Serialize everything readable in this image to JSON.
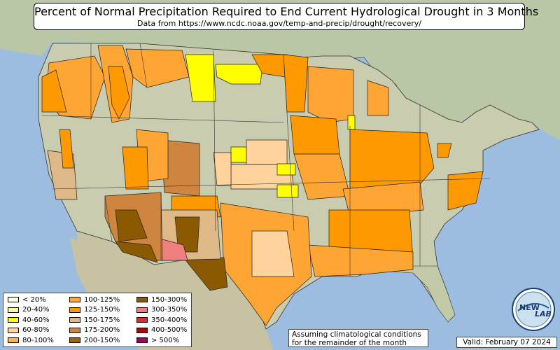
{
  "title": {
    "main": "Percent of Normal Precipitation Required to End Current Hydrological Drought in 3 Months",
    "source": "Data from https://www.ncdc.noaa.gov/temp-and-precip/drought/recovery/"
  },
  "legend": {
    "items": [
      {
        "label": "< 20%",
        "color": "#ffffe0"
      },
      {
        "label": "20-40%",
        "color": "#ffff99"
      },
      {
        "label": "40-60%",
        "color": "#ffff00"
      },
      {
        "label": "60-80%",
        "color": "#ffd39b"
      },
      {
        "label": "80-100%",
        "color": "#ffb347"
      },
      {
        "label": "100-125%",
        "color": "#ffa533"
      },
      {
        "label": "125-150%",
        "color": "#ff9900"
      },
      {
        "label": "150-175%",
        "color": "#deb887"
      },
      {
        "label": "175-200%",
        "color": "#cd853f"
      },
      {
        "label": "200-150%",
        "color": "#a0610f"
      },
      {
        "label": "150-300%",
        "color": "#8b5a00"
      },
      {
        "label": "300-350%",
        "color": "#f08080"
      },
      {
        "label": "350-400%",
        "color": "#d03030"
      },
      {
        "label": "400-500%",
        "color": "#b00000"
      },
      {
        "label": "> 500%",
        "color": "#a0005a"
      }
    ]
  },
  "note": {
    "line1": "Assuming climatological conditions",
    "line2": "for the remainder of the month"
  },
  "valid": "Valid: February 07 2024",
  "logo": {
    "text_top": "NEW",
    "text_bottom": "LAB"
  },
  "colors": {
    "ocean": "#9dbde0",
    "land": "#c9ccae",
    "mexico": "#c6c2a2",
    "canada": "#b8c8a8"
  }
}
